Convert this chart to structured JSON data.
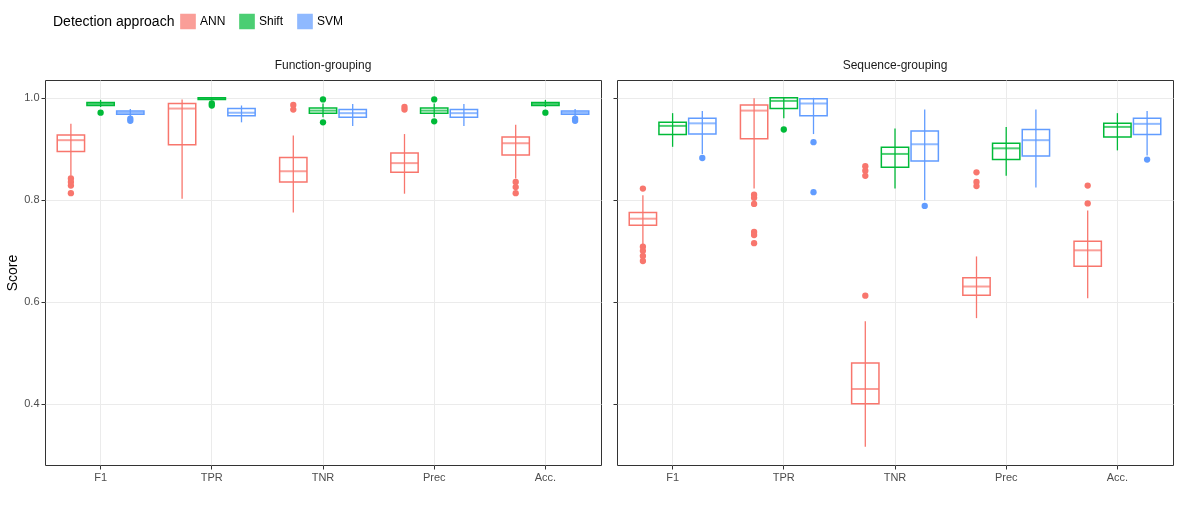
{
  "chart_data": [
    {
      "type": "box",
      "title": "Function-grouping",
      "ylabel": "Score",
      "legend_title": "Detection approach",
      "legend": "top",
      "grid": true,
      "ylim": [
        0.28,
        1.035
      ],
      "yticks": [
        0.4,
        0.6,
        0.8,
        {
          "value": 1.0,
          "label": "1.0"
        }
      ],
      "categories": [
        "F1",
        "TPR",
        "TNR",
        "Prec",
        "Acc."
      ],
      "series": [
        {
          "name": "ANN",
          "color": "#f8766d",
          "boxes": [
            {
              "low": 0.847,
              "q1": 0.895,
              "median": 0.917,
              "q3": 0.927,
              "high": 0.949,
              "outliers": [
                0.842,
                0.835,
                0.828,
                0.813
              ]
            },
            {
              "low": 0.802,
              "q1": 0.908,
              "median": 0.979,
              "q3": 0.989,
              "high": 0.997
            },
            {
              "low": 0.775,
              "q1": 0.835,
              "median": 0.856,
              "q3": 0.883,
              "high": 0.926,
              "outliers": [
                0.986,
                0.977
              ]
            },
            {
              "low": 0.812,
              "q1": 0.854,
              "median": 0.872,
              "q3": 0.892,
              "high": 0.929,
              "outliers": [
                0.982,
                0.977
              ]
            },
            {
              "low": 0.842,
              "q1": 0.888,
              "median": 0.911,
              "q3": 0.923,
              "high": 0.947,
              "outliers": [
                0.835,
                0.825,
                0.813
              ]
            }
          ]
        },
        {
          "name": "Shift",
          "color": "#00ba38",
          "boxes": [
            {
              "low": 0.982,
              "q1": 0.985,
              "median": 0.988,
              "q3": 0.991,
              "high": 0.996,
              "outliers": [
                0.971
              ]
            },
            {
              "low": 0.995,
              "q1": 0.997,
              "median": 0.999,
              "q3": 1.0,
              "high": 1.0,
              "outliers": [
                0.989,
                0.985
              ]
            },
            {
              "low": 0.962,
              "q1": 0.97,
              "median": 0.975,
              "q3": 0.98,
              "high": 0.989,
              "outliers": [
                0.997,
                0.952
              ]
            },
            {
              "low": 0.962,
              "q1": 0.97,
              "median": 0.975,
              "q3": 0.98,
              "high": 0.989,
              "outliers": [
                0.997,
                0.954
              ]
            },
            {
              "low": 0.982,
              "q1": 0.985,
              "median": 0.988,
              "q3": 0.991,
              "high": 0.996,
              "outliers": [
                0.971
              ]
            }
          ]
        },
        {
          "name": "SVM",
          "color": "#619cff",
          "boxes": [
            {
              "low": 0.964,
              "q1": 0.968,
              "median": 0.971,
              "q3": 0.974,
              "high": 0.978,
              "outliers": [
                0.959,
                0.955
              ]
            },
            {
              "low": 0.952,
              "q1": 0.965,
              "median": 0.971,
              "q3": 0.979,
              "high": 0.985
            },
            {
              "low": 0.945,
              "q1": 0.962,
              "median": 0.97,
              "q3": 0.977,
              "high": 0.988
            },
            {
              "low": 0.945,
              "q1": 0.962,
              "median": 0.97,
              "q3": 0.977,
              "high": 0.988
            },
            {
              "low": 0.964,
              "q1": 0.968,
              "median": 0.971,
              "q3": 0.974,
              "high": 0.978,
              "outliers": [
                0.959,
                0.955
              ]
            }
          ]
        }
      ]
    },
    {
      "type": "box",
      "title": "Sequence-grouping",
      "grid": true,
      "tick_labels": "x",
      "ylim": [
        0.28,
        1.035
      ],
      "yticks": [
        0.4,
        0.6,
        0.8,
        1
      ],
      "categories": [
        "F1",
        "TPR",
        "TNR",
        "Prec",
        "Acc."
      ],
      "series": [
        {
          "name": "ANN",
          "color": "#f8766d",
          "boxes": [
            {
              "low": 0.711,
              "q1": 0.75,
              "median": 0.763,
              "q3": 0.775,
              "high": 0.809,
              "outliers": [
                0.822,
                0.708,
                0.7,
                0.69,
                0.68
              ]
            },
            {
              "low": 0.822,
              "q1": 0.92,
              "median": 0.975,
              "q3": 0.986,
              "high": 0.999,
              "outliers": [
                0.81,
                0.804,
                0.792,
                0.737,
                0.731,
                0.715
              ]
            },
            {
              "low": 0.316,
              "q1": 0.4,
              "median": 0.429,
              "q3": 0.48,
              "high": 0.562,
              "outliers": [
                0.866,
                0.857,
                0.847,
                0.612
              ]
            },
            {
              "low": 0.568,
              "q1": 0.613,
              "median": 0.63,
              "q3": 0.647,
              "high": 0.689,
              "outliers": [
                0.854,
                0.835,
                0.827
              ]
            },
            {
              "low": 0.607,
              "q1": 0.67,
              "median": 0.701,
              "q3": 0.719,
              "high": 0.779,
              "outliers": [
                0.828,
                0.793
              ]
            }
          ]
        },
        {
          "name": "Shift",
          "color": "#00ba38",
          "boxes": [
            {
              "low": 0.904,
              "q1": 0.928,
              "median": 0.945,
              "q3": 0.952,
              "high": 0.97
            },
            {
              "low": 0.96,
              "q1": 0.979,
              "median": 0.994,
              "q3": 1.0,
              "high": 1.0,
              "outliers": [
                0.938
              ]
            },
            {
              "low": 0.822,
              "q1": 0.864,
              "median": 0.89,
              "q3": 0.903,
              "high": 0.94
            },
            {
              "low": 0.847,
              "q1": 0.879,
              "median": 0.901,
              "q3": 0.911,
              "high": 0.943
            },
            {
              "low": 0.897,
              "q1": 0.923,
              "median": 0.943,
              "q3": 0.95,
              "high": 0.97
            }
          ]
        },
        {
          "name": "SVM",
          "color": "#619cff",
          "boxes": [
            {
              "low": 0.89,
              "q1": 0.929,
              "median": 0.95,
              "q3": 0.96,
              "high": 0.974,
              "outliers": [
                0.882
              ]
            },
            {
              "low": 0.929,
              "q1": 0.965,
              "median": 0.989,
              "q3": 0.998,
              "high": 1.0,
              "outliers": [
                0.913,
                0.815
              ]
            },
            {
              "low": 0.799,
              "q1": 0.876,
              "median": 0.909,
              "q3": 0.935,
              "high": 0.977,
              "outliers": [
                0.788
              ]
            },
            {
              "low": 0.824,
              "q1": 0.886,
              "median": 0.917,
              "q3": 0.938,
              "high": 0.977
            },
            {
              "low": 0.887,
              "q1": 0.928,
              "median": 0.949,
              "q3": 0.96,
              "high": 0.974,
              "outliers": [
                0.879
              ]
            }
          ]
        }
      ]
    }
  ]
}
